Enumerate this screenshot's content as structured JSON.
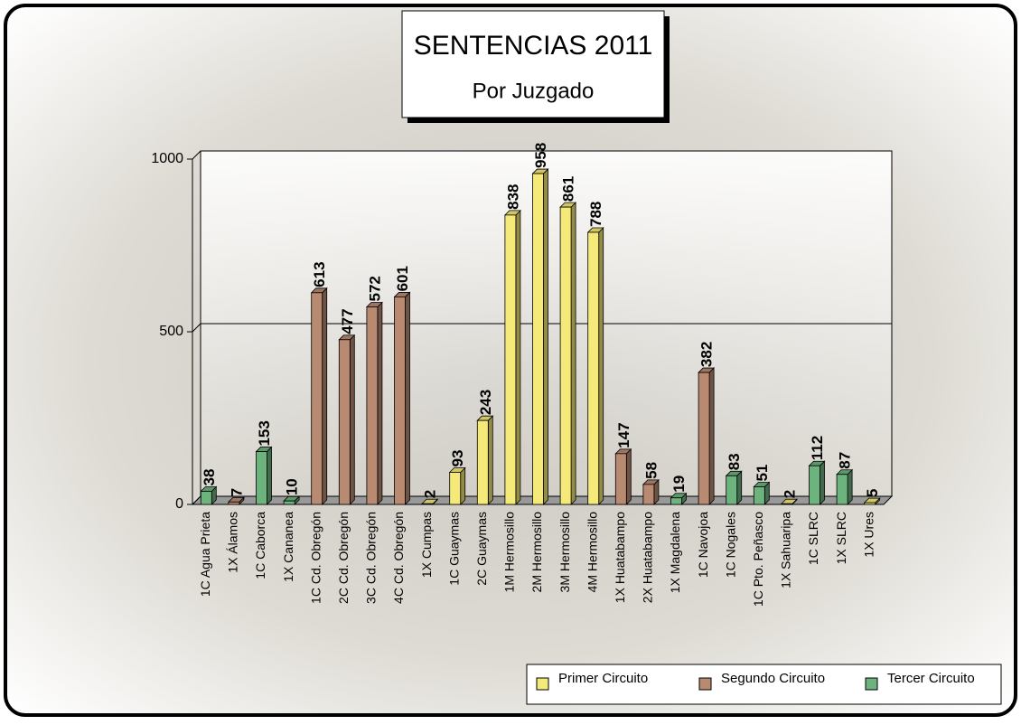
{
  "chart_data": {
    "type": "bar3d",
    "title": "SENTENCIAS 2011",
    "subtitle": "Por Juzgado",
    "categories": [
      "1C Agua Prieta",
      "1X Álamos",
      "1C Caborca",
      "1X Cananea",
      "1C Cd. Obregón",
      "2C Cd. Obregón",
      "3C Cd. Obregón",
      "4C Cd. Obregón",
      "1X Cumpas",
      "1C Guaymas",
      "2C Guaymas",
      "1M Hermosillo",
      "2M Hermosillo",
      "3M Hermosillo",
      "4M Hermosillo",
      "1X Huatabampo",
      "2X Huatabampo",
      "1X Magdalena",
      "1C Navojoa",
      "1C Nogales",
      "1C Pto. Peñasco",
      "1X Sahuaripa",
      "1C SLRC",
      "1X SLRC",
      "1X Ures"
    ],
    "series": [
      {
        "name": "Primer Circuito",
        "color": "#f5e97a",
        "values": [
          null,
          null,
          null,
          null,
          null,
          null,
          null,
          null,
          2,
          93,
          243,
          838,
          958,
          861,
          788,
          null,
          null,
          null,
          null,
          null,
          null,
          2,
          null,
          null,
          5
        ]
      },
      {
        "name": "Segundo Circuito",
        "color": "#b98a72",
        "values": [
          null,
          7,
          null,
          null,
          613,
          477,
          572,
          601,
          null,
          null,
          null,
          null,
          null,
          null,
          null,
          147,
          58,
          null,
          382,
          null,
          null,
          null,
          null,
          null,
          null
        ]
      },
      {
        "name": "Tercer Circuito",
        "color": "#6db37e",
        "values": [
          38,
          null,
          153,
          10,
          null,
          null,
          null,
          null,
          null,
          null,
          null,
          null,
          null,
          null,
          null,
          null,
          null,
          19,
          null,
          83,
          51,
          null,
          112,
          87,
          null
        ]
      }
    ],
    "ylim": [
      0,
      1000
    ],
    "yticks": [
      0,
      500,
      1000
    ],
    "grid": true,
    "legend": "bottom-right"
  }
}
